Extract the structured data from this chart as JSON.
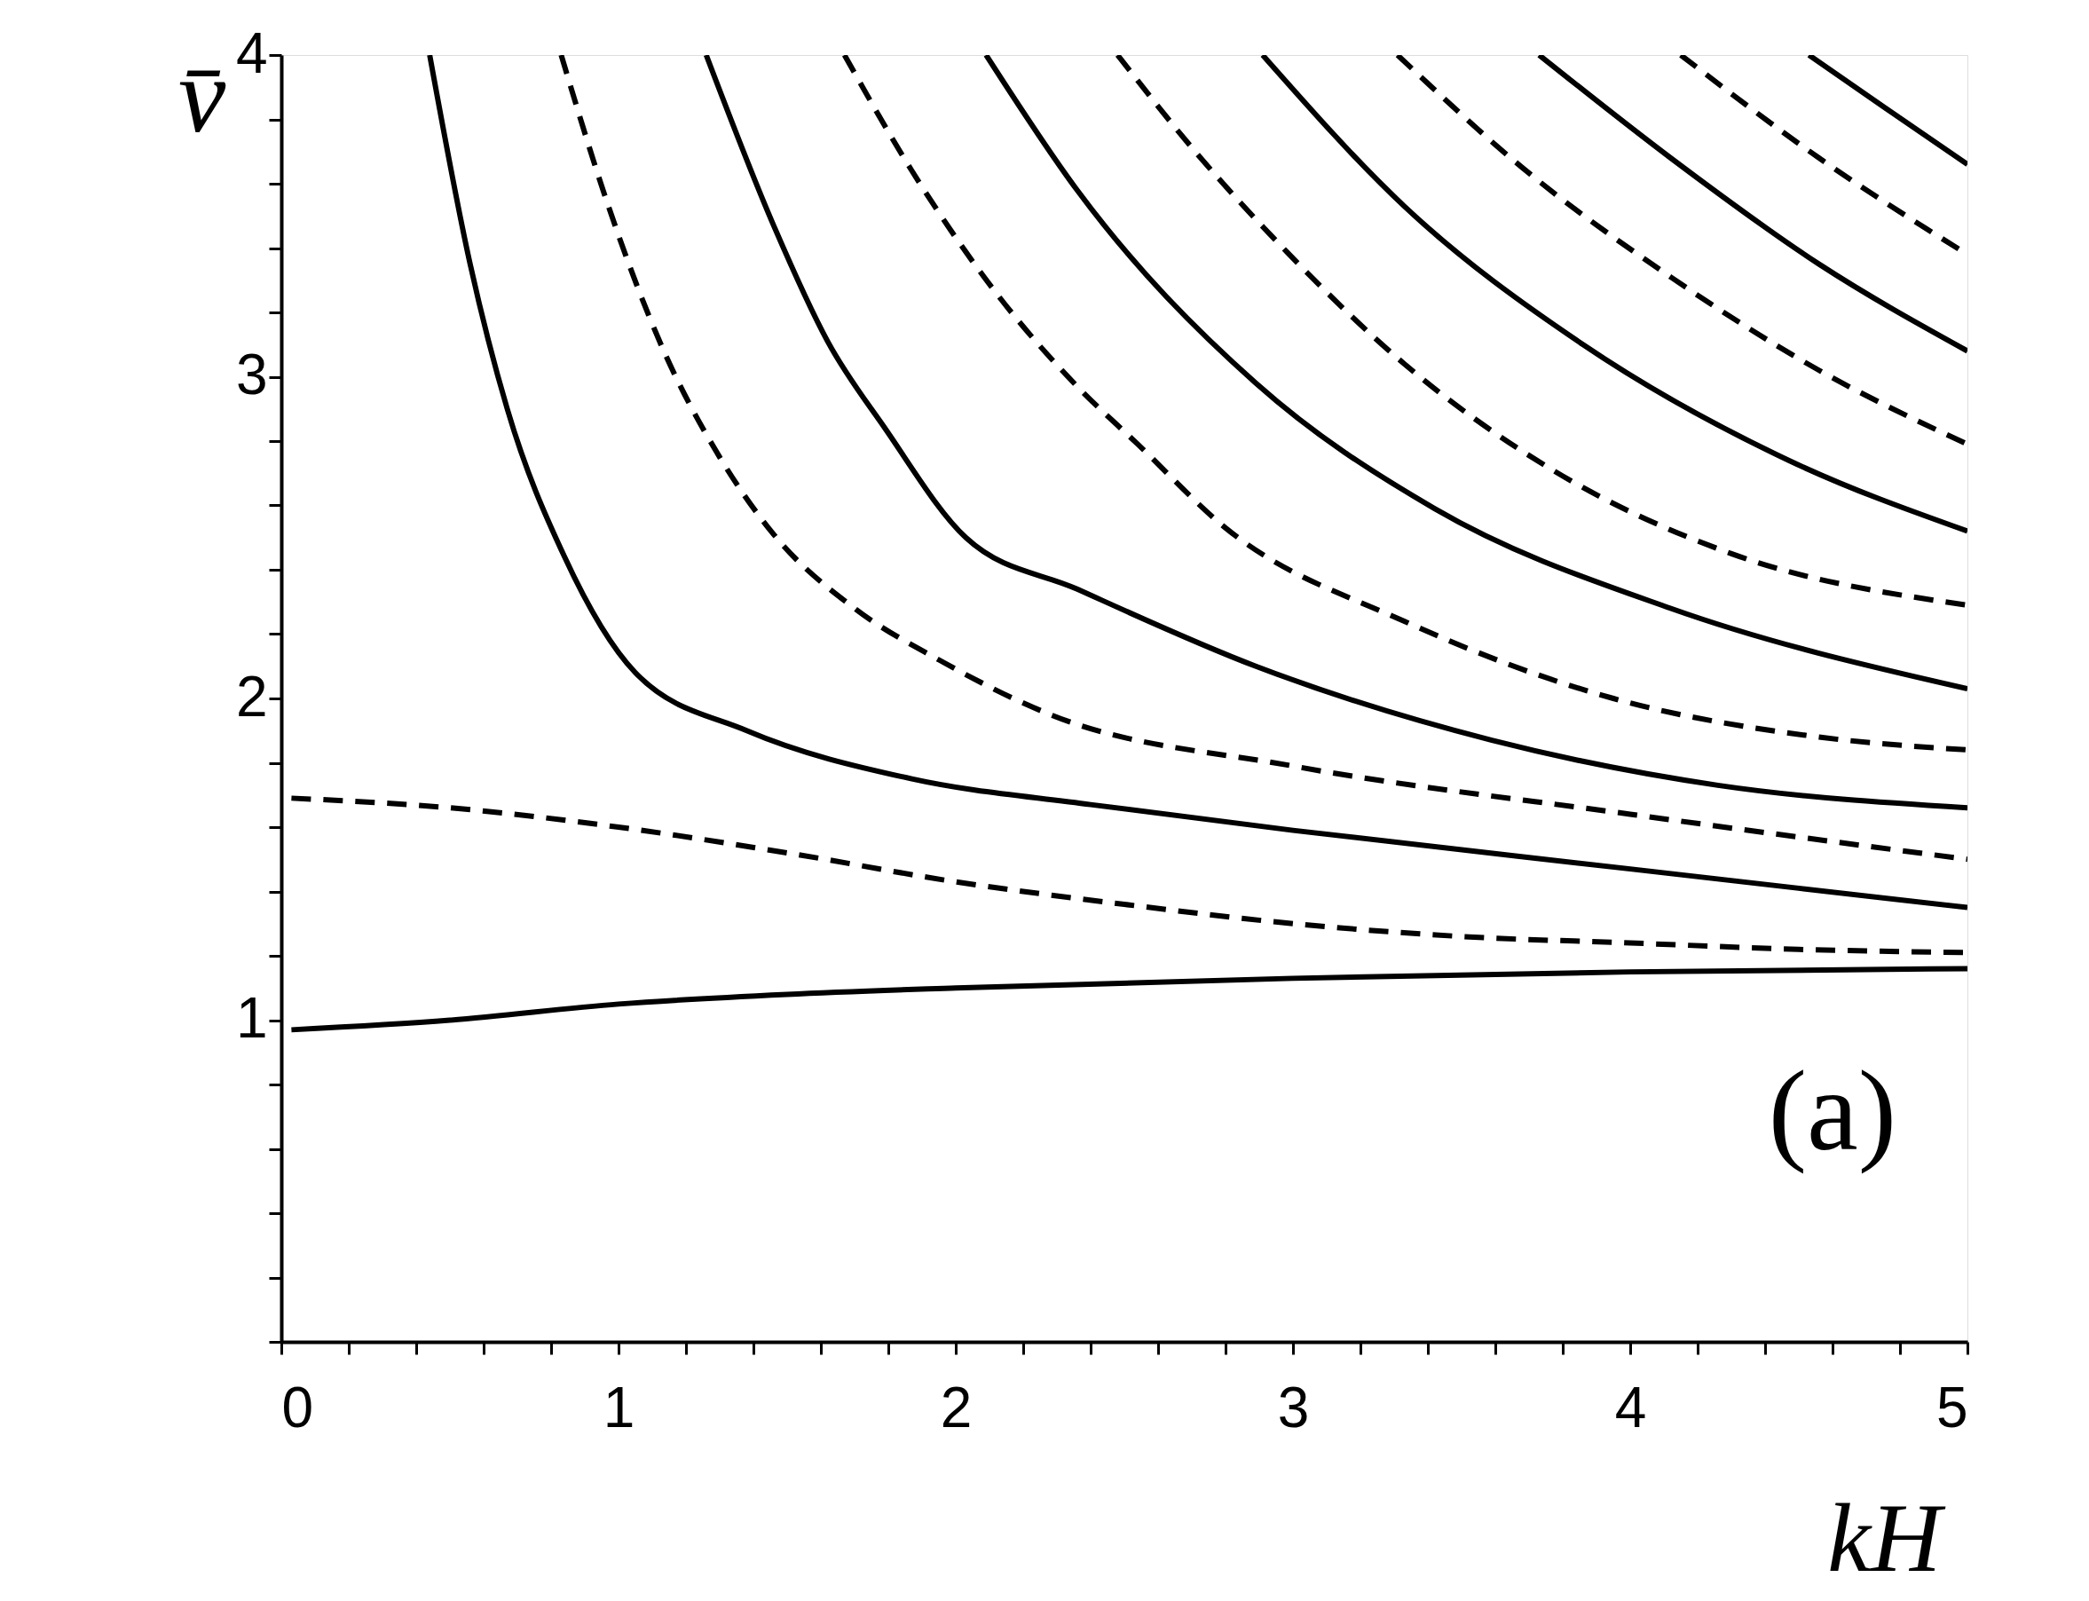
{
  "chart_data": {
    "type": "line",
    "xlabel": "kH",
    "ylabel": "v̄",
    "annotations": [
      "(a)"
    ],
    "xlim": [
      0,
      5
    ],
    "ylim": [
      0,
      4
    ],
    "grid": false,
    "marker": "none",
    "xticks": [
      0,
      {
        "value": 0.2,
        "label": null
      },
      {
        "value": 0.4,
        "label": null
      },
      {
        "value": 0.6,
        "label": null
      },
      {
        "value": 0.8,
        "label": null
      },
      1,
      {
        "value": 1.2,
        "label": null
      },
      {
        "value": 1.4,
        "label": null
      },
      {
        "value": 1.6,
        "label": null
      },
      {
        "value": 1.8,
        "label": null
      },
      2,
      {
        "value": 2.2,
        "label": null
      },
      {
        "value": 2.4,
        "label": null
      },
      {
        "value": 2.6,
        "label": null
      },
      {
        "value": 2.8,
        "label": null
      },
      3,
      {
        "value": 3.2,
        "label": null
      },
      {
        "value": 3.4,
        "label": null
      },
      {
        "value": 3.6,
        "label": null
      },
      {
        "value": 3.8,
        "label": null
      },
      4,
      {
        "value": 4.2,
        "label": null
      },
      {
        "value": 4.4,
        "label": null
      },
      {
        "value": 4.6,
        "label": null
      },
      {
        "value": 4.8,
        "label": null
      },
      5
    ],
    "yticks": [
      {
        "value": 0,
        "label": null
      },
      {
        "value": 0.2,
        "label": null
      },
      {
        "value": 0.4,
        "label": null
      },
      {
        "value": 0.6,
        "label": null
      },
      {
        "value": 0.8,
        "label": null
      },
      1,
      {
        "value": 1.2,
        "label": null
      },
      {
        "value": 1.4,
        "label": null
      },
      {
        "value": 1.6,
        "label": null
      },
      {
        "value": 1.8,
        "label": null
      },
      2,
      {
        "value": 2.2,
        "label": null
      },
      {
        "value": 2.4,
        "label": null
      },
      {
        "value": 2.6,
        "label": null
      },
      {
        "value": 2.8,
        "label": null
      },
      3,
      {
        "value": 3.2,
        "label": null
      },
      {
        "value": 3.4,
        "label": null
      },
      {
        "value": 3.6,
        "label": null
      },
      {
        "value": 3.8,
        "label": null
      },
      4
    ],
    "series": [
      {
        "color": "#000000",
        "line_style": "solid",
        "x": [
          0.03,
          0.5,
          1,
          1.5,
          2,
          3,
          4,
          5
        ],
        "values": [
          0.97,
          1.0,
          1.05,
          1.08,
          1.1,
          1.13,
          1.15,
          1.16
        ]
      },
      {
        "color": "#000000",
        "line_style": "dashed",
        "x": [
          0.03,
          0.5,
          1,
          1.5,
          2,
          2.5,
          3,
          3.5,
          4,
          4.5,
          5
        ],
        "values": [
          1.69,
          1.66,
          1.6,
          1.52,
          1.43,
          1.36,
          1.3,
          1.26,
          1.24,
          1.22,
          1.21
        ]
      },
      {
        "color": "#000000",
        "line_style": "solid",
        "x": [
          0.44,
          0.56,
          0.67,
          0.84,
          1.05,
          1.38,
          1.87,
          2.4,
          3,
          4,
          5
        ],
        "values": [
          4,
          3.35,
          2.9,
          2.44,
          2.08,
          1.9,
          1.75,
          1.67,
          1.59,
          1.47,
          1.35
        ]
      },
      {
        "color": "#000000",
        "line_style": "dashed",
        "x": [
          0.83,
          0.97,
          1.13,
          1.3,
          1.46,
          1.7,
          1.95,
          2.28,
          3,
          4,
          5
        ],
        "values": [
          4,
          3.53,
          3.09,
          2.75,
          2.51,
          2.28,
          2.12,
          1.95,
          1.79,
          1.64,
          1.5
        ]
      },
      {
        "color": "#000000",
        "line_style": "solid",
        "x": [
          1.26,
          1.46,
          1.62,
          1.79,
          2.03,
          2.36,
          2.89,
          3.59,
          4.26,
          5
        ],
        "values": [
          4,
          3.47,
          3.11,
          2.84,
          2.5,
          2.34,
          2.1,
          1.87,
          1.73,
          1.66
        ]
      },
      {
        "color": "#000000",
        "line_style": "dashed",
        "x": [
          1.67,
          1.87,
          2.12,
          2.36,
          2.54,
          2.8,
          3.33,
          3.95,
          4.56,
          5
        ],
        "values": [
          4,
          3.64,
          3.26,
          2.97,
          2.79,
          2.53,
          2.24,
          2.0,
          1.88,
          1.84
        ]
      },
      {
        "color": "#000000",
        "line_style": "solid",
        "x": [
          2.09,
          2.36,
          2.89,
          3.42,
          4.12,
          5
        ],
        "values": [
          4,
          3.58,
          2.98,
          2.59,
          2.28,
          2.03
        ]
      },
      {
        "color": "#000000",
        "line_style": "dashed",
        "x": [
          2.48,
          2.71,
          2.98,
          3.33,
          3.77,
          4.3,
          5
        ],
        "values": [
          4,
          3.7,
          3.39,
          3.04,
          2.71,
          2.45,
          2.29
        ]
      },
      {
        "color": "#000000",
        "line_style": "solid",
        "x": [
          2.91,
          3.33,
          3.86,
          4.47,
          5
        ],
        "values": [
          4,
          3.53,
          3.1,
          2.74,
          2.52
        ]
      },
      {
        "color": "#000000",
        "line_style": "dashed",
        "x": [
          3.31,
          3.68,
          4.12,
          4.56,
          5
        ],
        "values": [
          4,
          3.65,
          3.31,
          3.02,
          2.79
        ]
      },
      {
        "color": "#000000",
        "line_style": "solid",
        "x": [
          3.73,
          4.12,
          4.56,
          5
        ],
        "values": [
          4,
          3.68,
          3.35,
          3.08
        ]
      },
      {
        "color": "#000000",
        "line_style": "dashed",
        "x": [
          4.15,
          4.56,
          5
        ],
        "values": [
          4,
          3.68,
          3.38
        ]
      },
      {
        "color": "#000000",
        "line_style": "solid",
        "x": [
          4.53,
          4.75,
          5
        ],
        "values": [
          4,
          3.84,
          3.66
        ]
      }
    ]
  }
}
